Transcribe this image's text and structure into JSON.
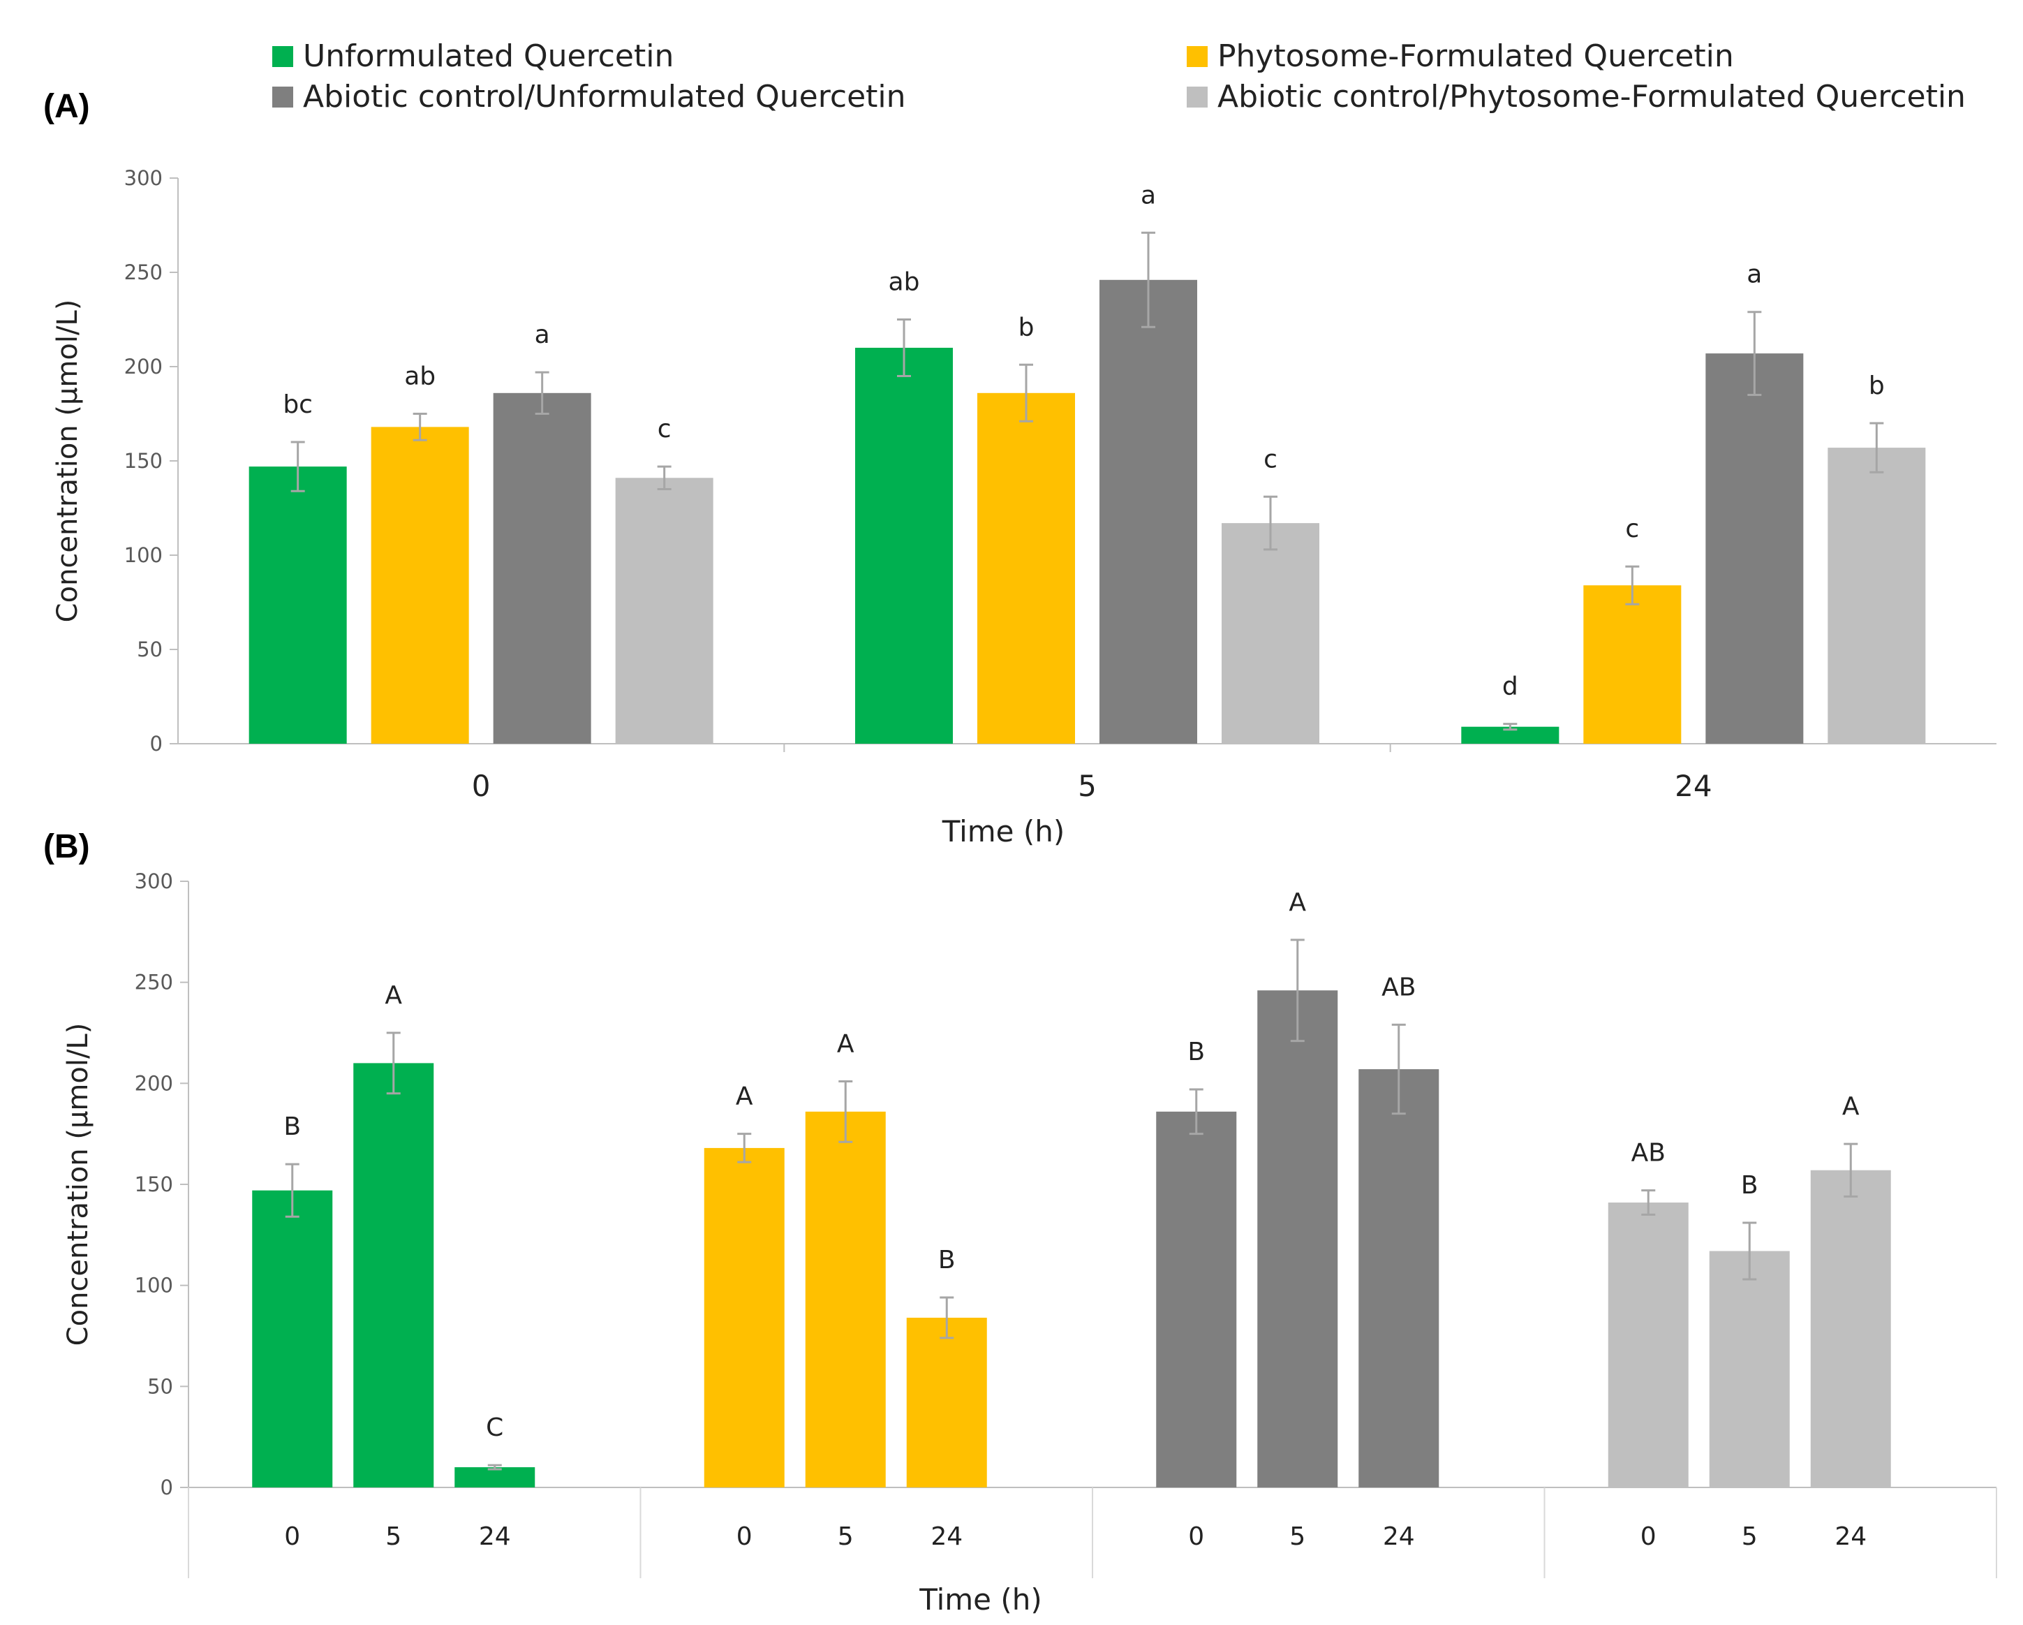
{
  "legend": [
    {
      "label": "Unformulated Quercetin",
      "color": "#00b050"
    },
    {
      "label": "Phytosome-Formulated Quercetin",
      "color": "#ffc000"
    },
    {
      "label": "Abiotic control/Unformulated Quercetin",
      "color": "#7f7f7f"
    },
    {
      "label": "Abiotic control/Phytosome-Formulated Quercetin",
      "color": "#bfbfbf"
    }
  ],
  "panels": {
    "a": "(A)",
    "b": "(B)"
  },
  "chart_data": [
    {
      "type": "bar",
      "panel": "(A)",
      "categories": [
        "0",
        "5",
        "24"
      ],
      "xlabel": "Time (h)",
      "ylabel": "Concentration (μmol/L)",
      "ylim": [
        0,
        300
      ],
      "yticks": [
        0,
        50,
        100,
        150,
        200,
        250,
        300
      ],
      "grid": false,
      "series": [
        {
          "name": "Unformulated Quercetin",
          "color": "#00b050",
          "values": [
            147,
            210,
            9
          ],
          "errors": [
            13,
            15,
            1.5
          ],
          "letters": [
            "bc",
            "ab",
            "d"
          ]
        },
        {
          "name": "Phytosome-Formulated Quercetin",
          "color": "#ffc000",
          "values": [
            168,
            186,
            84
          ],
          "errors": [
            7,
            15,
            10
          ],
          "letters": [
            "ab",
            "b",
            "c"
          ]
        },
        {
          "name": "Abiotic control/Unformulated Quercetin",
          "color": "#7f7f7f",
          "values": [
            186,
            246,
            207
          ],
          "errors": [
            11,
            25,
            22
          ],
          "letters": [
            "a",
            "a",
            "a"
          ]
        },
        {
          "name": "Abiotic control/Phytosome-Formulated Quercetin",
          "color": "#bfbfbf",
          "values": [
            141,
            117,
            157
          ],
          "errors": [
            6,
            14,
            13
          ],
          "letters": [
            "c",
            "c",
            "b"
          ]
        }
      ]
    },
    {
      "type": "bar",
      "panel": "(B)",
      "groups": [
        {
          "name": "Unformulated Quercetin",
          "color": "#00b050",
          "x": [
            "0",
            "5",
            "24"
          ],
          "values": [
            147,
            210,
            10
          ],
          "errors": [
            13,
            15,
            1
          ],
          "letters": [
            "B",
            "A",
            "C"
          ]
        },
        {
          "name": "Phytosome-Formulated Quercetin",
          "color": "#ffc000",
          "x": [
            "0",
            "5",
            "24"
          ],
          "values": [
            168,
            186,
            84
          ],
          "errors": [
            7,
            15,
            10
          ],
          "letters": [
            "A",
            "A",
            "B"
          ]
        },
        {
          "name": "Abiotic control/Unformulated Quercetin",
          "color": "#7f7f7f",
          "x": [
            "0",
            "5",
            "24"
          ],
          "values": [
            186,
            246,
            207
          ],
          "errors": [
            11,
            25,
            22
          ],
          "letters": [
            "B",
            "A",
            "AB"
          ]
        },
        {
          "name": "Abiotic control/Phytosome-Formulated Quercetin",
          "color": "#bfbfbf",
          "x": [
            "0",
            "5",
            "24"
          ],
          "values": [
            141,
            117,
            157
          ],
          "errors": [
            6,
            14,
            13
          ],
          "letters": [
            "AB",
            "B",
            "A"
          ]
        }
      ],
      "xlabel": "Time (h)",
      "ylabel": "Concentration (μmol/L)",
      "ylim": [
        0,
        300
      ],
      "yticks": [
        0,
        50,
        100,
        150,
        200,
        250,
        300
      ],
      "grid": false
    }
  ]
}
